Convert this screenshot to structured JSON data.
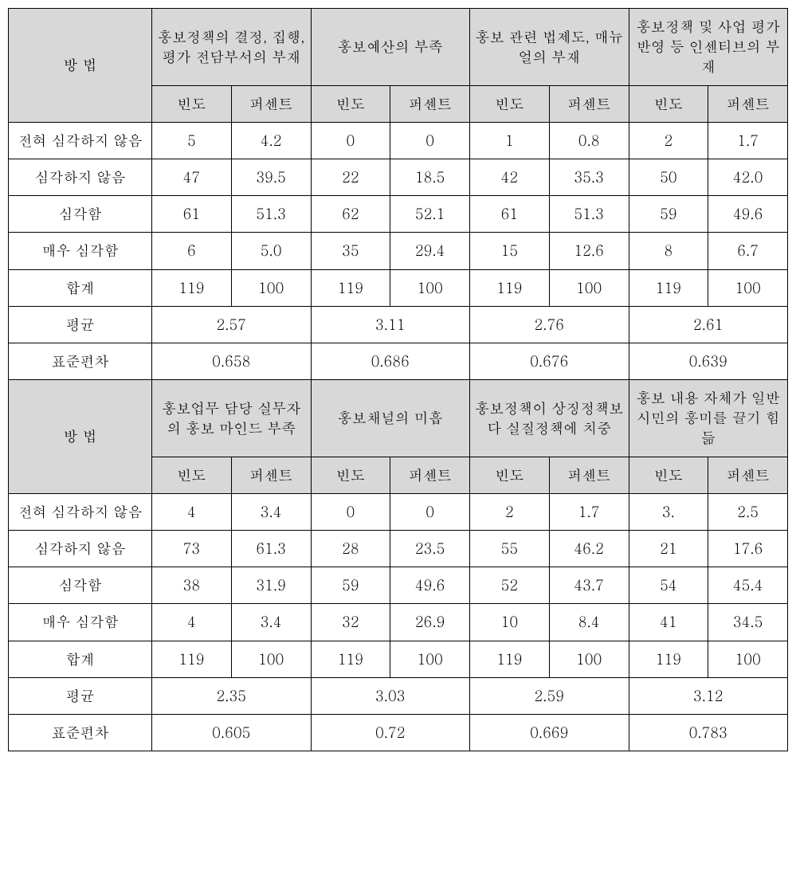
{
  "colors": {
    "header_bg": "#d8d8d8",
    "border": "#000000",
    "text": "#000000",
    "bg": "#ffffff"
  },
  "fontsize": 18,
  "labels": {
    "method": "방 법",
    "freq": "빈도",
    "pct": "퍼센트",
    "row1": "전혀 심각하지 않음",
    "row2": "심각하지 않음",
    "row3": "심각함",
    "row4": "매우 심각함",
    "row5": "합계",
    "row6": "평균",
    "row7": "표준편차"
  },
  "section1": {
    "headers": {
      "c1": "홍보정책의 결정, 집행, 평가 전담부서의 부재",
      "c2": "홍보예산의 부족",
      "c3": "홍보 관련 법제도, 매뉴얼의 부재",
      "c4": "홍보정책 및 사업 평가반영 등 인센티브의 부재"
    },
    "rows": [
      {
        "c1f": "5",
        "c1p": "4.2",
        "c2f": "0",
        "c2p": "0",
        "c3f": "1",
        "c3p": "0.8",
        "c4f": "2",
        "c4p": "1.7"
      },
      {
        "c1f": "47",
        "c1p": "39.5",
        "c2f": "22",
        "c2p": "18.5",
        "c3f": "42",
        "c3p": "35.3",
        "c4f": "50",
        "c4p": "42.0"
      },
      {
        "c1f": "61",
        "c1p": "51.3",
        "c2f": "62",
        "c2p": "52.1",
        "c3f": "61",
        "c3p": "51.3",
        "c4f": "59",
        "c4p": "49.6"
      },
      {
        "c1f": "6",
        "c1p": "5.0",
        "c2f": "35",
        "c2p": "29.4",
        "c3f": "15",
        "c3p": "12.6",
        "c4f": "8",
        "c4p": "6.7"
      },
      {
        "c1f": "119",
        "c1p": "100",
        "c2f": "119",
        "c2p": "100",
        "c3f": "119",
        "c3p": "100",
        "c4f": "119",
        "c4p": "100"
      }
    ],
    "mean": {
      "c1": "2.57",
      "c2": "3.11",
      "c3": "2.76",
      "c4": "2.61"
    },
    "std": {
      "c1": "0.658",
      "c2": "0.686",
      "c3": "0.676",
      "c4": "0.639"
    }
  },
  "section2": {
    "headers": {
      "c1": "홍보업무 담당 실무자의 홍보 마인드 부족",
      "c2": "홍보채널의 미흡",
      "c3": "홍보정책이 상징정책보다 실질정책에 치중",
      "c4": "홍보 내용 자체가 일반 시민의 흥미를 끌기 힘듦"
    },
    "rows": [
      {
        "c1f": "4",
        "c1p": "3.4",
        "c2f": "0",
        "c2p": "0",
        "c3f": "2",
        "c3p": "1.7",
        "c4f": "3.",
        "c4p": "2.5"
      },
      {
        "c1f": "73",
        "c1p": "61.3",
        "c2f": "28",
        "c2p": "23.5",
        "c3f": "55",
        "c3p": "46.2",
        "c4f": "21",
        "c4p": "17.6"
      },
      {
        "c1f": "38",
        "c1p": "31.9",
        "c2f": "59",
        "c2p": "49.6",
        "c3f": "52",
        "c3p": "43.7",
        "c4f": "54",
        "c4p": "45.4"
      },
      {
        "c1f": "4",
        "c1p": "3.4",
        "c2f": "32",
        "c2p": "26.9",
        "c3f": "10",
        "c3p": "8.4",
        "c4f": "41",
        "c4p": "34.5"
      },
      {
        "c1f": "119",
        "c1p": "100",
        "c2f": "119",
        "c2p": "100",
        "c3f": "119",
        "c3p": "100",
        "c4f": "119",
        "c4p": "100"
      }
    ],
    "mean": {
      "c1": "2.35",
      "c2": "3.03",
      "c3": "2.59",
      "c4": "3.12"
    },
    "std": {
      "c1": "0.605",
      "c2": "0.72",
      "c3": "0.669",
      "c4": "0.783"
    }
  }
}
